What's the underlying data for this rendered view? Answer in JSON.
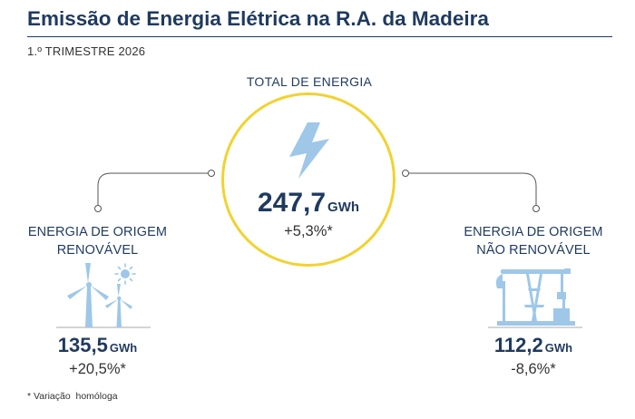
{
  "header": {
    "title": "Emissão de Energia Elétrica na R.A. da Madeira",
    "subtitle": "1.º TRIMESTRE 2026"
  },
  "total": {
    "label": "TOTAL DE ENERGIA",
    "value": "247,7",
    "unit": "GWh",
    "variation": "+5,3%*",
    "icon": "lightning-bolt-icon"
  },
  "renewable": {
    "label_line1": "ENERGIA DE ORIGEM",
    "label_line2": "RENOVÁVEL",
    "value": "135,5",
    "unit": "GWh",
    "variation": "+20,5%*",
    "icon": "wind-turbines-sun-icon"
  },
  "non_renewable": {
    "label_line1": "ENERGIA DE ORIGEM",
    "label_line2": "NÃO RENOVÁVEL",
    "value": "112,2",
    "unit": "GWh",
    "variation": "-8,6%*",
    "icon": "oil-pump-jack-icon"
  },
  "footnote": "* Variação  homóloga",
  "colors": {
    "title": "#1f3a5f",
    "circle_border": "#f2d230",
    "icon_fill": "#9ec7e8",
    "connector": "#555555"
  }
}
